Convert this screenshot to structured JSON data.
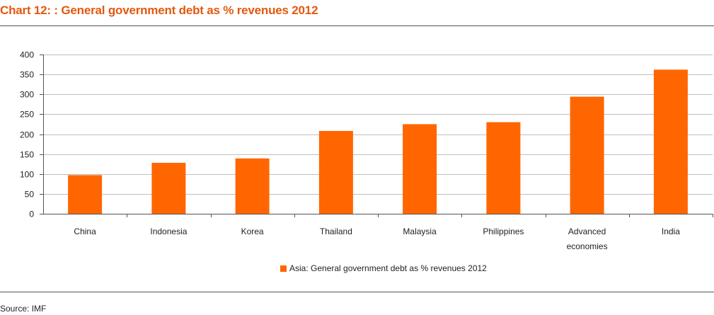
{
  "page": {
    "title": "Chart 12: : General government debt as % revenues 2012",
    "source": "Source: IMF"
  },
  "colors": {
    "bar": "#ff6600",
    "title": "#e3580d",
    "grid": "#bfbfbf",
    "axis": "#555555"
  },
  "chart_data": {
    "type": "bar",
    "title": "Chart 12: : General government debt as % revenues 2012",
    "xlabel": "",
    "ylabel": "",
    "ylim": [
      0,
      400
    ],
    "yticks": [
      0,
      50,
      100,
      150,
      200,
      250,
      300,
      350,
      400
    ],
    "grid": true,
    "legend_position": "bottom-center",
    "categories": [
      [
        "China"
      ],
      [
        "Indonesia"
      ],
      [
        "Korea"
      ],
      [
        "Thailand"
      ],
      [
        "Malaysia"
      ],
      [
        "Philippines"
      ],
      [
        "Advanced",
        "economies"
      ],
      [
        "India"
      ]
    ],
    "series": [
      {
        "name": "Asia: General government debt as % revenues 2012",
        "values": [
          97,
          128,
          139,
          208,
          225,
          230,
          294,
          362
        ]
      }
    ]
  }
}
